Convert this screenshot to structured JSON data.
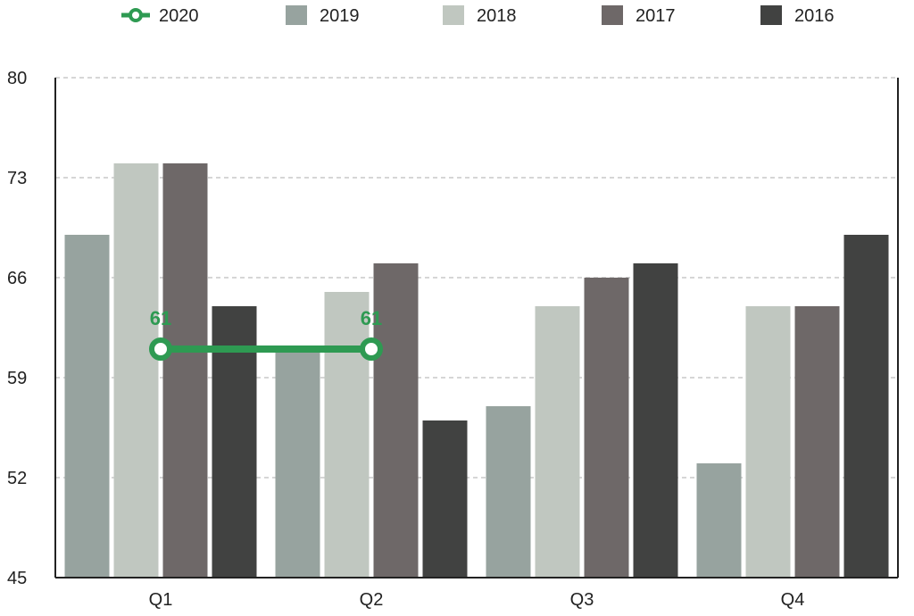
{
  "chart_data": {
    "type": "bar",
    "categories": [
      "Q1",
      "Q2",
      "Q3",
      "Q4"
    ],
    "ylim": [
      45,
      80
    ],
    "yticks": [
      "45",
      "52",
      "59",
      "66",
      "73",
      "80"
    ],
    "grid": true,
    "legend_position": "top",
    "series": [
      {
        "name": "2019",
        "kind": "bar",
        "color": "#97a39f",
        "values": [
          69,
          61,
          57,
          53
        ]
      },
      {
        "name": "2018",
        "kind": "bar",
        "color": "#c0c7c0",
        "values": [
          74,
          65,
          64,
          64
        ]
      },
      {
        "name": "2017",
        "kind": "bar",
        "color": "#6e6868",
        "values": [
          74,
          67,
          66,
          64
        ]
      },
      {
        "name": "2016",
        "kind": "bar",
        "color": "#414241",
        "values": [
          64,
          56,
          67,
          69
        ]
      },
      {
        "name": "2020",
        "kind": "line",
        "color": "#2e9a52",
        "values": [
          61,
          61,
          null,
          null
        ],
        "data_labels": [
          "61",
          "61"
        ]
      }
    ],
    "legend": [
      "2020",
      "2019",
      "2018",
      "2017",
      "2016"
    ]
  }
}
